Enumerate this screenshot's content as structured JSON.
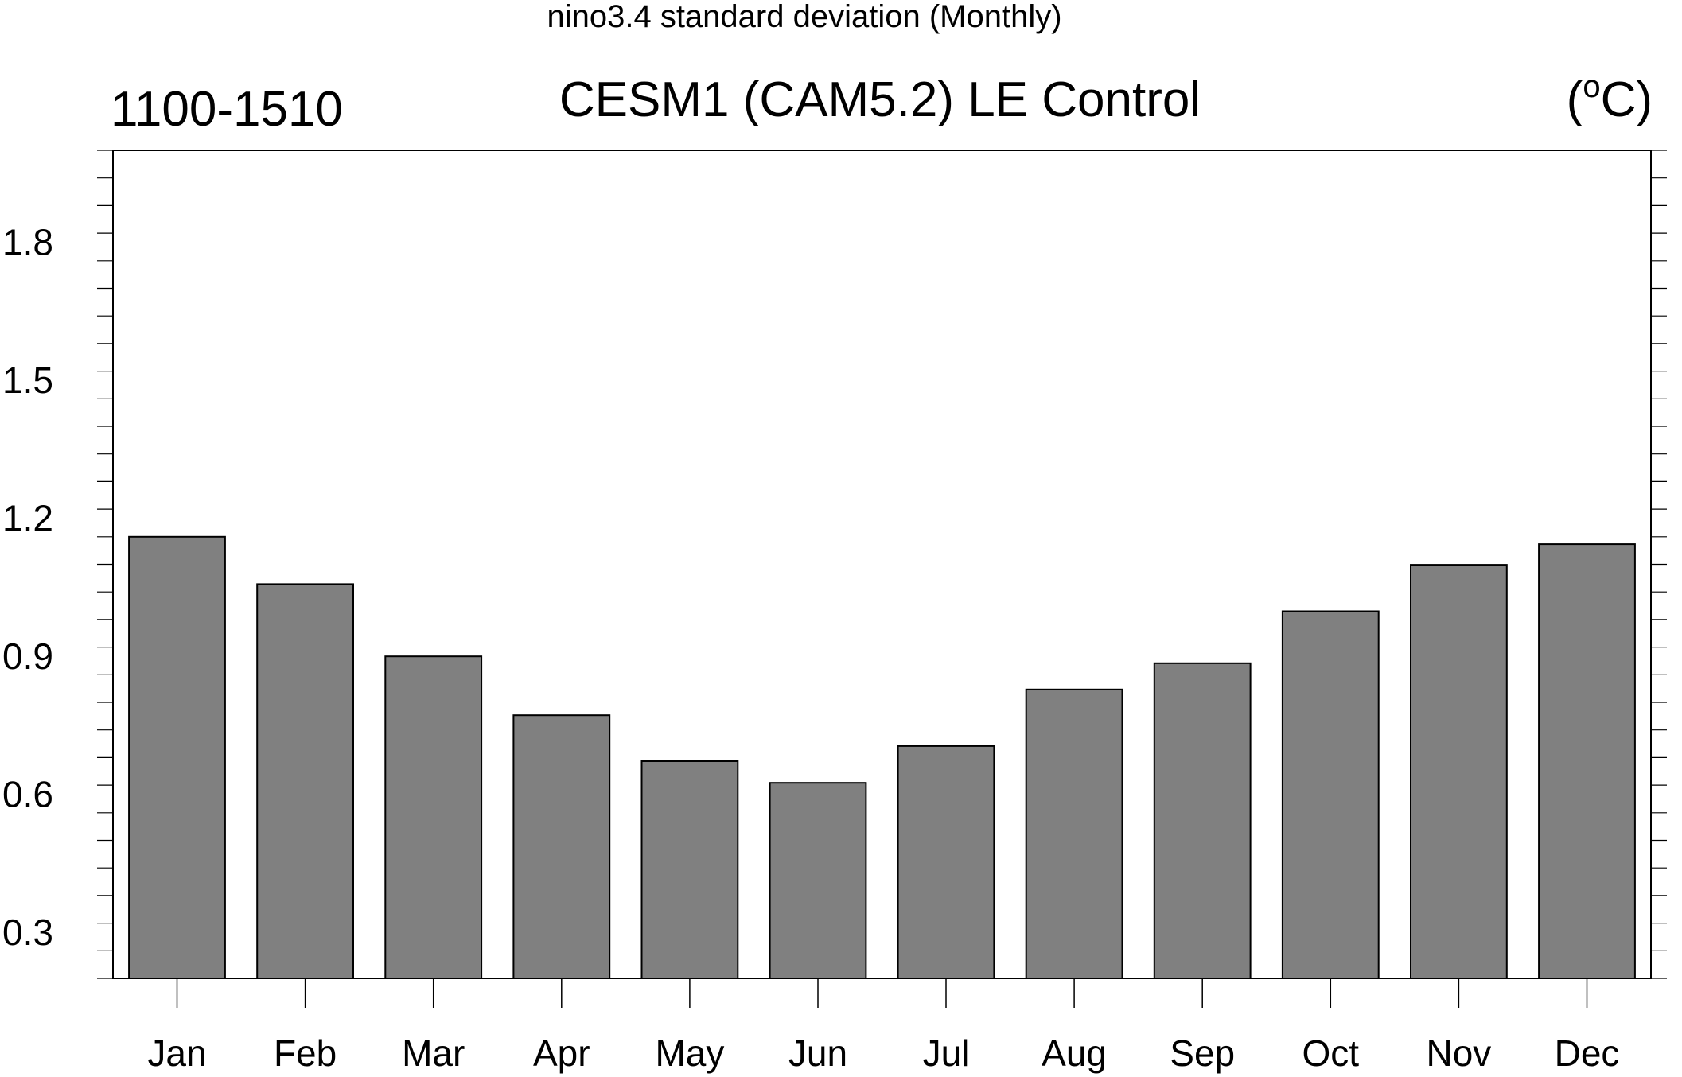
{
  "chart_data": {
    "type": "bar",
    "title": "nino3.4 standard deviation (Monthly)",
    "left_string": "1100-1510",
    "center_string": "CESM1 (CAM5.2) LE Control",
    "right_string": {
      "open": "(",
      "superscript": "o",
      "unit": "C)"
    },
    "categories": [
      "Jan",
      "Feb",
      "Mar",
      "Apr",
      "May",
      "Jun",
      "Jul",
      "Aug",
      "Sep",
      "Oct",
      "Nov",
      "Dec"
    ],
    "values": [
      1.16,
      1.057,
      0.9,
      0.772,
      0.672,
      0.625,
      0.705,
      0.828,
      0.885,
      0.998,
      1.099,
      1.144
    ],
    "ylim": [
      0.2,
      2.0
    ],
    "yticks": [
      0.3,
      0.6,
      0.9,
      1.2,
      1.5,
      1.8
    ],
    "ytick_labels": [
      "0.3",
      "0.6",
      "0.9",
      "1.2",
      "1.5",
      "1.8"
    ],
    "bar_color": "#808080",
    "grid": false
  }
}
